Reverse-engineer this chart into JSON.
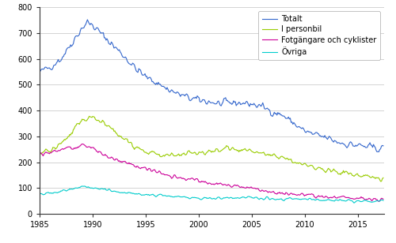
{
  "title": "",
  "xlabel": "",
  "ylabel": "",
  "xlim": [
    1985.0,
    2017.5
  ],
  "ylim": [
    0,
    800
  ],
  "yticks": [
    0,
    100,
    200,
    300,
    400,
    500,
    600,
    700,
    800
  ],
  "xticks": [
    1985,
    1990,
    1995,
    2000,
    2005,
    2010,
    2015
  ],
  "legend_labels": [
    "Totalt",
    "I personbil",
    "Fotgängare och cyklister",
    "Övriga"
  ],
  "line_colors": [
    "#3366cc",
    "#99cc00",
    "#cc0099",
    "#00cccc"
  ],
  "line_width": 0.8,
  "background_color": "#ffffff",
  "grid_color": "#cccccc",
  "figsize": [
    5.0,
    3.08
  ],
  "dpi": 100,
  "totalt_x": [
    1985,
    1986,
    1987,
    1988,
    1989,
    1989.5,
    1990,
    1991,
    1992,
    1993,
    1994,
    1995,
    1996,
    1997,
    1998,
    1999,
    2000,
    2001,
    2002,
    2003,
    2004,
    2005,
    2006,
    2007,
    2008,
    2009,
    2010,
    2011,
    2012,
    2013,
    2014,
    2015,
    2016,
    2017.4
  ],
  "totalt_y": [
    548,
    570,
    600,
    660,
    720,
    742,
    730,
    690,
    650,
    610,
    565,
    530,
    510,
    485,
    465,
    450,
    440,
    435,
    425,
    430,
    430,
    425,
    415,
    395,
    380,
    350,
    320,
    305,
    295,
    280,
    270,
    265,
    258,
    252
  ],
  "personbil_x": [
    1985,
    1986,
    1987,
    1988,
    1989,
    1990,
    1991,
    1992,
    1993,
    1994,
    1995,
    1997,
    1999,
    2001,
    2003,
    2005,
    2007,
    2009,
    2010,
    2012,
    2014,
    2016,
    2017.4
  ],
  "personbil_y": [
    235,
    245,
    270,
    310,
    365,
    375,
    355,
    320,
    290,
    265,
    240,
    225,
    230,
    240,
    255,
    240,
    230,
    205,
    190,
    170,
    155,
    145,
    138
  ],
  "fotg_x": [
    1985,
    1986,
    1987,
    1988,
    1989,
    1990,
    1991,
    1992,
    1993,
    1995,
    1997,
    1999,
    2001,
    2003,
    2005,
    2007,
    2008,
    2009,
    2010,
    2012,
    2014,
    2016,
    2017.4
  ],
  "fotg_y": [
    232,
    238,
    250,
    258,
    262,
    255,
    230,
    215,
    200,
    175,
    150,
    135,
    120,
    110,
    100,
    85,
    80,
    75,
    72,
    65,
    60,
    56,
    54
  ],
  "ovriga_x": [
    1985,
    1986,
    1987,
    1988,
    1989,
    1990,
    1992,
    1994,
    1996,
    1998,
    2000,
    2002,
    2004,
    2006,
    2008,
    2010,
    2012,
    2014,
    2016,
    2017.4
  ],
  "ovriga_y": [
    78,
    82,
    88,
    95,
    108,
    100,
    88,
    78,
    72,
    65,
    60,
    60,
    62,
    60,
    57,
    56,
    54,
    52,
    50,
    50
  ]
}
